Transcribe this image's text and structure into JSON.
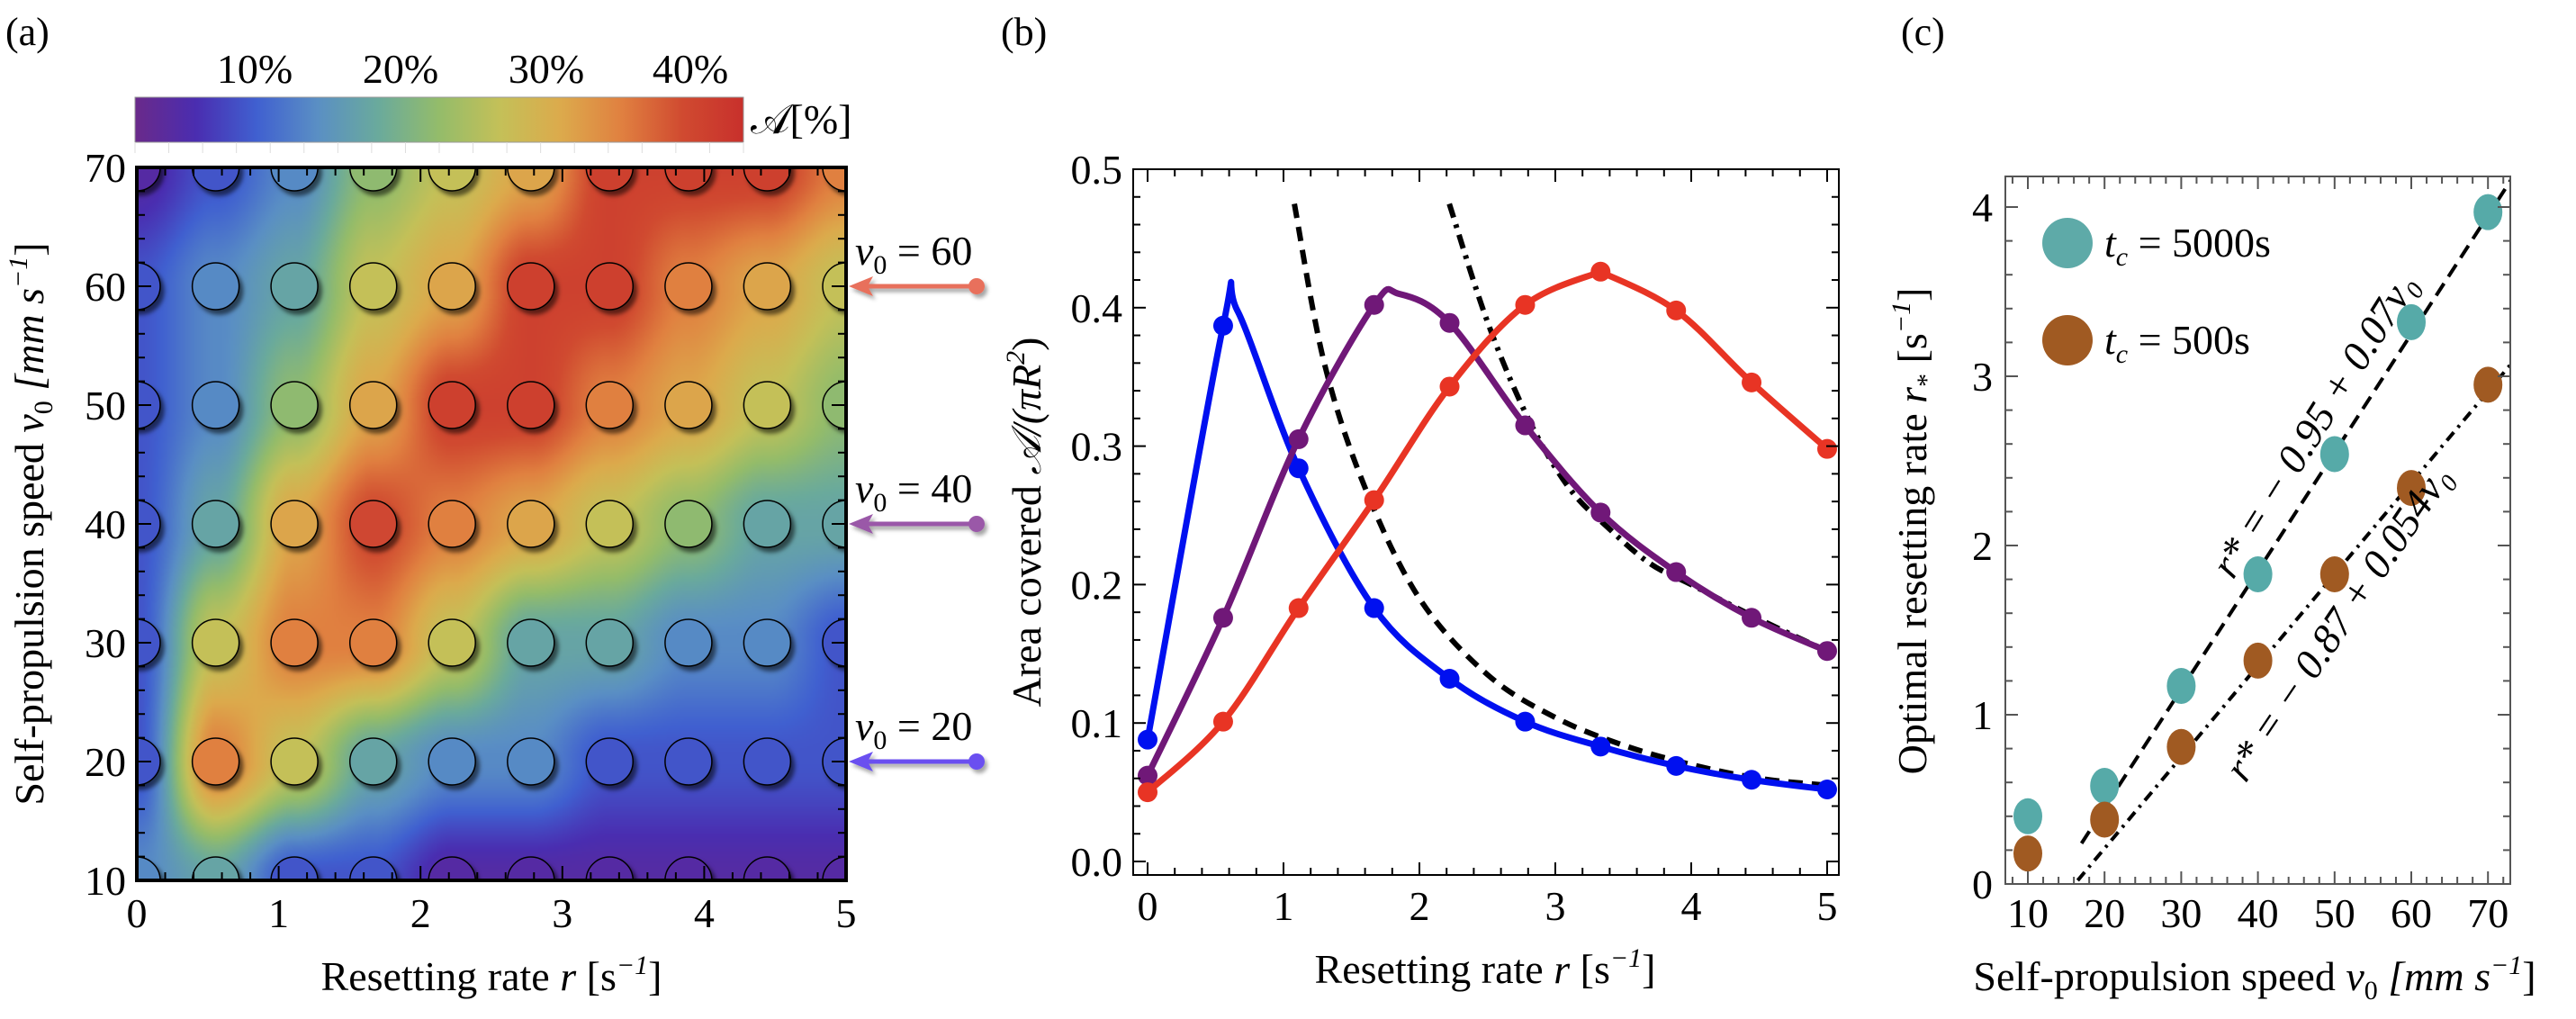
{
  "chart_data": [
    {
      "panel": "(a)",
      "type": "heatmap",
      "title": "",
      "xlabel": "Resetting rate r [s^-1]",
      "ylabel": "Self-propulsion speed v0 [mm s^-1]",
      "xlim": [
        0,
        5
      ],
      "ylim": [
        10,
        70
      ],
      "x_ticks": [
        "0",
        "1",
        "2",
        "3",
        "4",
        "5"
      ],
      "y_ticks": [
        "10",
        "20",
        "30",
        "40",
        "50",
        "60",
        "70"
      ],
      "colorbar": {
        "label": "A[%]",
        "tick_labels": [
          "10%",
          "20%",
          "30%",
          "40%"
        ],
        "range": [
          0,
          45
        ],
        "colors": [
          "#6a2a8a",
          "#4a2db0",
          "#4060d0",
          "#5a8fc4",
          "#6aaa9c",
          "#94bc6a",
          "#c4c058",
          "#dcaa4c",
          "#e08040",
          "#d04a30",
          "#c8302c"
        ]
      },
      "dot_r_values": [
        0,
        0.556,
        1.111,
        1.667,
        2.222,
        2.778,
        3.333,
        3.889,
        4.444,
        5.0
      ],
      "dot_v0_values": [
        10,
        20,
        30,
        40,
        50,
        60,
        70
      ],
      "dot_values_percent": [
        [
          13,
          17,
          8,
          8,
          3,
          3,
          3,
          3,
          3,
          3
        ],
        [
          8,
          36,
          27,
          17,
          13,
          13,
          8,
          8,
          8,
          8
        ],
        [
          8,
          27,
          36,
          36,
          27,
          17,
          17,
          13,
          13,
          8
        ],
        [
          8,
          17,
          32,
          41,
          36,
          32,
          27,
          22,
          17,
          17
        ],
        [
          8,
          13,
          22,
          32,
          42,
          42,
          36,
          32,
          27,
          22
        ],
        [
          8,
          13,
          17,
          27,
          32,
          42,
          42,
          36,
          32,
          27
        ],
        [
          3,
          8,
          13,
          22,
          27,
          32,
          42,
          42,
          42,
          36
        ]
      ],
      "annotations": [
        {
          "text": "v0 = 60",
          "v0": 60,
          "color": "#e8705c"
        },
        {
          "text": "v0 = 40",
          "v0": 40,
          "color": "#9a58a8"
        },
        {
          "text": "v0 = 20",
          "v0": 20,
          "color": "#6a50f0"
        }
      ]
    },
    {
      "panel": "(b)",
      "type": "line",
      "title": "",
      "xlabel": "Resetting rate r [s^-1]",
      "ylabel": "Area covered A/(πR²)",
      "xlim": [
        -0.08,
        5.08
      ],
      "ylim": [
        -0.01,
        0.5
      ],
      "x_ticks": [
        "0",
        "1",
        "2",
        "3",
        "4",
        "5"
      ],
      "y_ticks": [
        "0.0",
        "0.1",
        "0.2",
        "0.3",
        "0.4",
        "0.5"
      ],
      "x": [
        0,
        0.556,
        1.111,
        1.667,
        2.222,
        2.778,
        3.333,
        3.889,
        4.444,
        5.0
      ],
      "series": [
        {
          "name": "v0 = 20",
          "color": "#0010f0",
          "values": [
            0.088,
            0.387,
            0.284,
            0.183,
            0.132,
            0.101,
            0.083,
            0.069,
            0.059,
            0.052
          ],
          "peak": [
            0.66,
            0.398
          ]
        },
        {
          "name": "v0 = 40",
          "color": "#701878",
          "values": [
            0.062,
            0.176,
            0.305,
            0.402,
            0.389,
            0.315,
            0.252,
            0.209,
            0.176,
            0.152
          ],
          "peak": [
            1.85,
            0.41
          ]
        },
        {
          "name": "v0 = 60",
          "color": "#e83424",
          "values": [
            0.05,
            0.101,
            0.183,
            0.261,
            0.343,
            0.402,
            0.426,
            0.398,
            0.346,
            0.298
          ],
          "peak": [
            3.33,
            0.426
          ]
        }
      ],
      "asymptotes": [
        {
          "name": "large-r asymptote v0=20",
          "style": "dashed",
          "x": [
            1.08,
            1.3,
            1.6,
            2.0,
            2.5,
            3.0,
            3.5,
            4.0,
            4.5,
            5.0
          ],
          "values": [
            0.475,
            0.36,
            0.27,
            0.19,
            0.135,
            0.104,
            0.084,
            0.07,
            0.06,
            0.055
          ]
        },
        {
          "name": "large-r asymptote v0=40",
          "style": "dash-dot",
          "x": [
            2.22,
            2.5,
            2.8,
            3.1,
            3.4,
            3.7,
            4.0,
            4.5,
            5.0
          ],
          "values": [
            0.475,
            0.39,
            0.32,
            0.27,
            0.24,
            0.215,
            0.2,
            0.175,
            0.152
          ]
        }
      ]
    },
    {
      "panel": "(c)",
      "type": "scatter",
      "title": "",
      "xlabel": "Self-propulsion speed v0 [mm s^-1]",
      "ylabel": "Optimal resetting rate r* [s^-1]",
      "xlim": [
        7,
        72
      ],
      "ylim": [
        0,
        4.2
      ],
      "x_ticks": [
        "10",
        "20",
        "30",
        "40",
        "50",
        "60",
        "70"
      ],
      "y_ticks": [
        "0",
        "1",
        "2",
        "3",
        "4"
      ],
      "x": [
        10,
        20,
        30,
        40,
        50,
        60,
        70
      ],
      "series": [
        {
          "name": "t_c = 5000s",
          "color": "#56aaa8",
          "values": [
            0.4,
            0.58,
            1.17,
            1.83,
            2.54,
            3.32,
            3.97
          ]
        },
        {
          "name": "t_c = 500s",
          "color": "#a05a22",
          "values": [
            0.18,
            0.38,
            0.81,
            1.32,
            1.83,
            2.34,
            2.95
          ]
        }
      ],
      "fits": [
        {
          "label": "r* = − 0.95 + 0.07v0",
          "intercept": -0.95,
          "slope": 0.07,
          "style": "dashed",
          "x_from": 17
        },
        {
          "label": "r* = − 0.87 + 0.054v0",
          "intercept": -0.87,
          "slope": 0.054,
          "style": "dash-dot",
          "x_from": 16.5
        }
      ],
      "legend": "top-left"
    }
  ],
  "labels": {
    "panel_a": "(a)",
    "panel_b": "(b)",
    "panel_c": "(c)",
    "a_xlabel_main": "Resetting rate ",
    "a_xlabel_var": "r",
    "a_xlabel_unit": " [s",
    "a_xlabel_exp": "−1",
    "a_xlabel_close": "]",
    "a_ylabel_main": "Self-propulsion speed ",
    "a_ylabel_var": "v",
    "a_ylabel_sub": "0",
    "a_ylabel_unit": " [mm  s",
    "a_ylabel_exp": "−1",
    "a_ylabel_close": "]",
    "cb_label": "𝒜[%]",
    "b_xlabel_main": "Resetting rate ",
    "b_xlabel_var": "r",
    "b_xlabel_unit": " [s",
    "b_xlabel_exp": "−1",
    "b_xlabel_close": "]",
    "b_ylabel_main": "Area covered  ",
    "b_ylabel_var": "𝒜/(πR",
    "b_ylabel_exp": "2",
    "b_ylabel_close": ")",
    "c_xlabel_main": "Self-propulsion speed ",
    "c_xlabel_var": "v",
    "c_xlabel_sub": "0",
    "c_xlabel_unit": " [mm  s",
    "c_xlabel_exp": "−1",
    "c_xlabel_close": "]",
    "c_ylabel_main": "Optimal resetting rate ",
    "c_ylabel_var": "r",
    "c_ylabel_sub": "*",
    "c_ylabel_unit": " [s",
    "c_ylabel_exp": "−1",
    "c_ylabel_close": "]",
    "legend_5000_t": "t",
    "legend_5000_sub": "c",
    "legend_5000_rest": " = 5000s",
    "legend_500_t": "t",
    "legend_500_sub": "c",
    "legend_500_rest": " = 500s",
    "fit1_label": "r* = − 0.95 + 0.07v₀",
    "fit2_label": "r* = − 0.87 + 0.054v₀",
    "arrow_60_v": "v",
    "arrow_60_sub": "0",
    "arrow_60_rest": " = 60",
    "arrow_40_v": "v",
    "arrow_40_sub": "0",
    "arrow_40_rest": " = 40",
    "arrow_20_v": "v",
    "arrow_20_sub": "0",
    "arrow_20_rest": " = 20"
  }
}
